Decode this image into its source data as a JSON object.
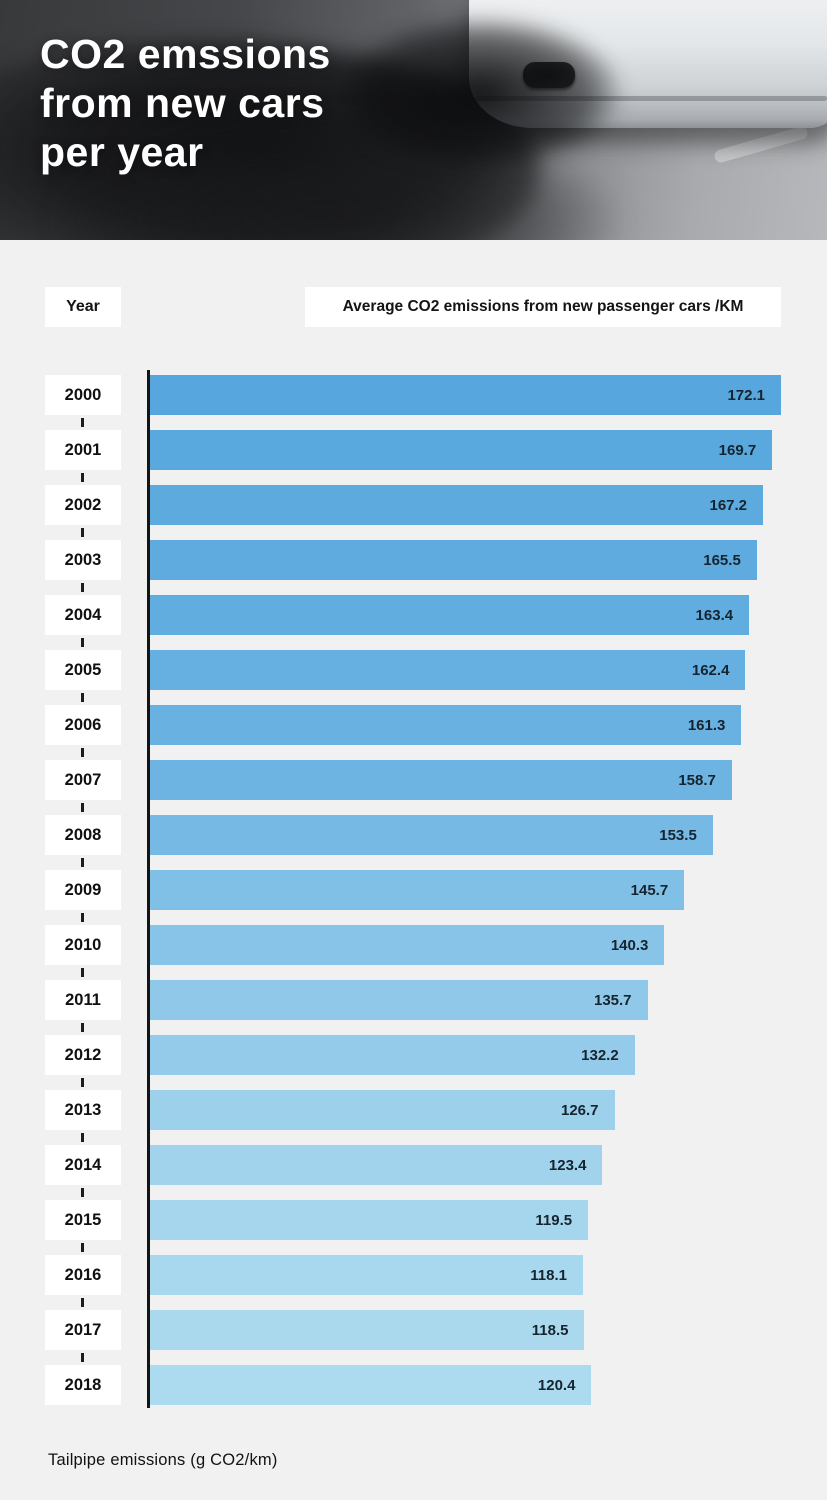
{
  "header": {
    "title_lines": [
      "CO2 emssions",
      "from new cars",
      "per year"
    ]
  },
  "labels": {
    "year_header": "Year",
    "value_header": "Average CO2 emissions from new passenger cars /KM",
    "caption": "Tailpipe emissions (g CO2/km)"
  },
  "chart_data": {
    "type": "bar",
    "orientation": "horizontal",
    "title": "CO2 emssions from new cars per year",
    "categories": [
      "2000",
      "2001",
      "2002",
      "2003",
      "2004",
      "2005",
      "2006",
      "2007",
      "2008",
      "2009",
      "2010",
      "2011",
      "2012",
      "2013",
      "2014",
      "2015",
      "2016",
      "2017",
      "2018"
    ],
    "values": [
      172.1,
      169.7,
      167.2,
      165.5,
      163.4,
      162.4,
      161.3,
      158.7,
      153.5,
      145.7,
      140.3,
      135.7,
      132.2,
      126.7,
      123.4,
      119.5,
      118.1,
      118.5,
      120.4
    ],
    "xlabel": "Tailpipe emissions (g CO2/km)",
    "ylabel": "Year",
    "xlim": [
      0,
      172.1
    ],
    "value_labels_shown": true,
    "legend": false,
    "grid": false,
    "bar_colors": [
      "#57a7de",
      "#59a8de",
      "#5caade",
      "#5fabdf",
      "#62ade0",
      "#65afe1",
      "#68b1e1",
      "#6db4e2",
      "#76b9e4",
      "#80bfe6",
      "#88c4e7",
      "#8fc8e9",
      "#95cbea",
      "#9cd0eb",
      "#a1d3ec",
      "#a5d6ed",
      "#a8d8ee",
      "#aad9ee",
      "#acdbef"
    ],
    "axis_color": "#141414",
    "value_text_color": "#16242f",
    "background_color": "#f1f1f2"
  }
}
